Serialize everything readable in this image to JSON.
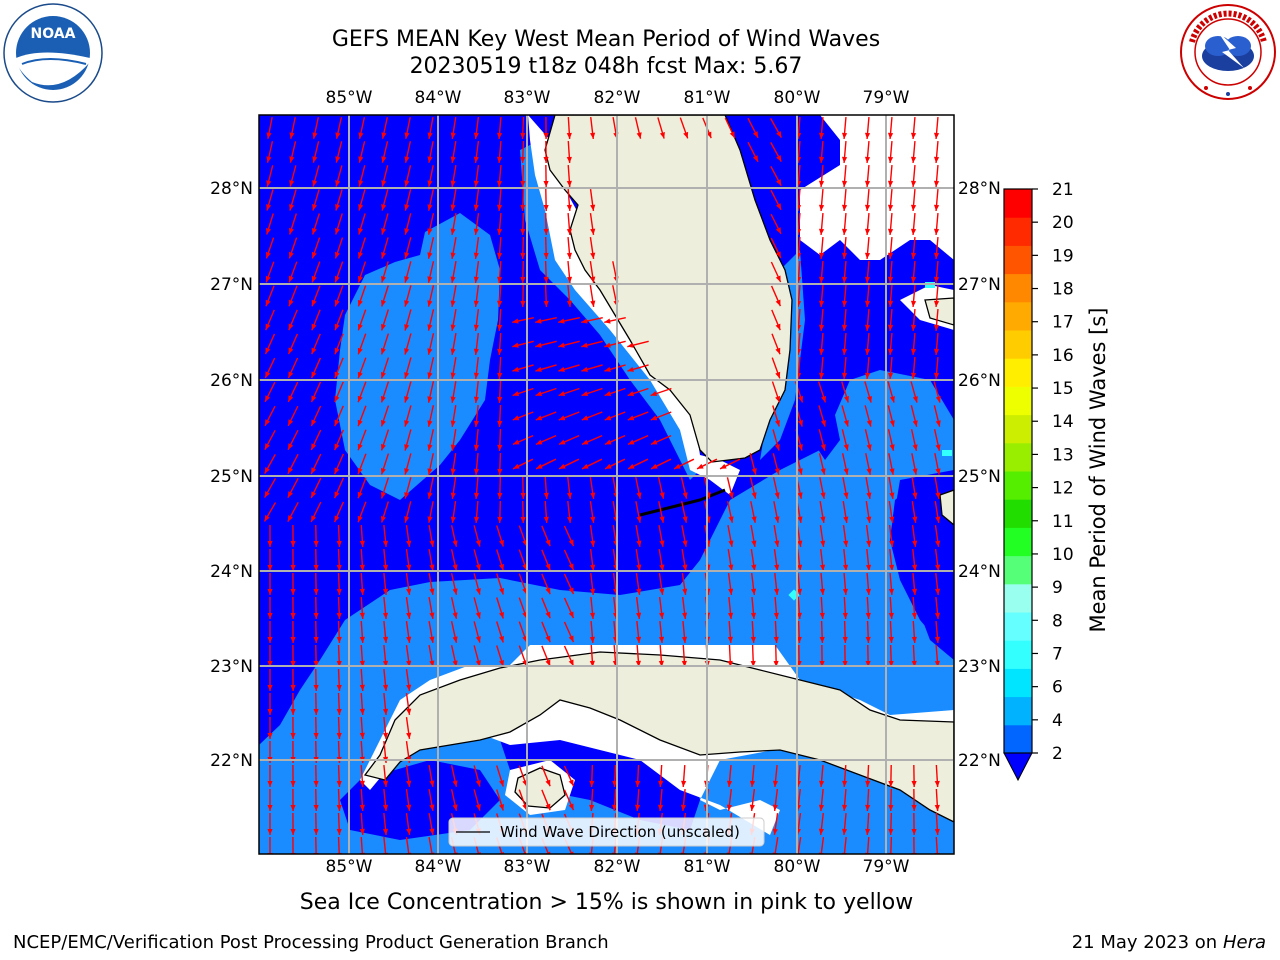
{
  "title": {
    "line1": "GEFS MEAN Key West Mean Period of Wind Waves",
    "line2": "20230519 t18z 048h fcst    Max: 5.67"
  },
  "logos": {
    "left": "NOAA",
    "right": "NATIONAL WEATHER SERVICE"
  },
  "map": {
    "lon_labels": [
      "85°W",
      "84°W",
      "83°W",
      "82°W",
      "81°W",
      "80°W",
      "79°W"
    ],
    "lat_labels": [
      "28°N",
      "27°N",
      "26°N",
      "25°N",
      "24°N",
      "23°N",
      "22°N"
    ],
    "legend_label": "Wind Wave Direction (unscaled)",
    "colors": {
      "deep": "#0000ff",
      "light": "#1a8cff",
      "land": "#eeeedc",
      "arrow": "#ff0000",
      "cyan": "#33ffff"
    }
  },
  "colorbar": {
    "label": "Mean Period of Wind Waves [s]",
    "ticks": [
      "2",
      "4",
      "6",
      "7",
      "8",
      "9",
      "10",
      "11",
      "12",
      "13",
      "14",
      "15",
      "16",
      "17",
      "18",
      "19",
      "20",
      "21"
    ],
    "colors": [
      "#0066ff",
      "#00b2ff",
      "#00e5ff",
      "#33ffff",
      "#66ffff",
      "#99ffee",
      "#55ff77",
      "#22ff22",
      "#22dd00",
      "#55ee00",
      "#99ee00",
      "#ccee00",
      "#eeff00",
      "#ffee00",
      "#ffcc00",
      "#ffaa00",
      "#ff8800",
      "#ff5500",
      "#ff2a00",
      "#ff0000"
    ]
  },
  "note": "Sea Ice Concentration > 15% is shown in pink to yellow",
  "footer": {
    "left": "NCEP/EMC/Verification Post Processing Product Generation Branch",
    "date": "21 May 2023 on",
    "host": "Hera"
  }
}
